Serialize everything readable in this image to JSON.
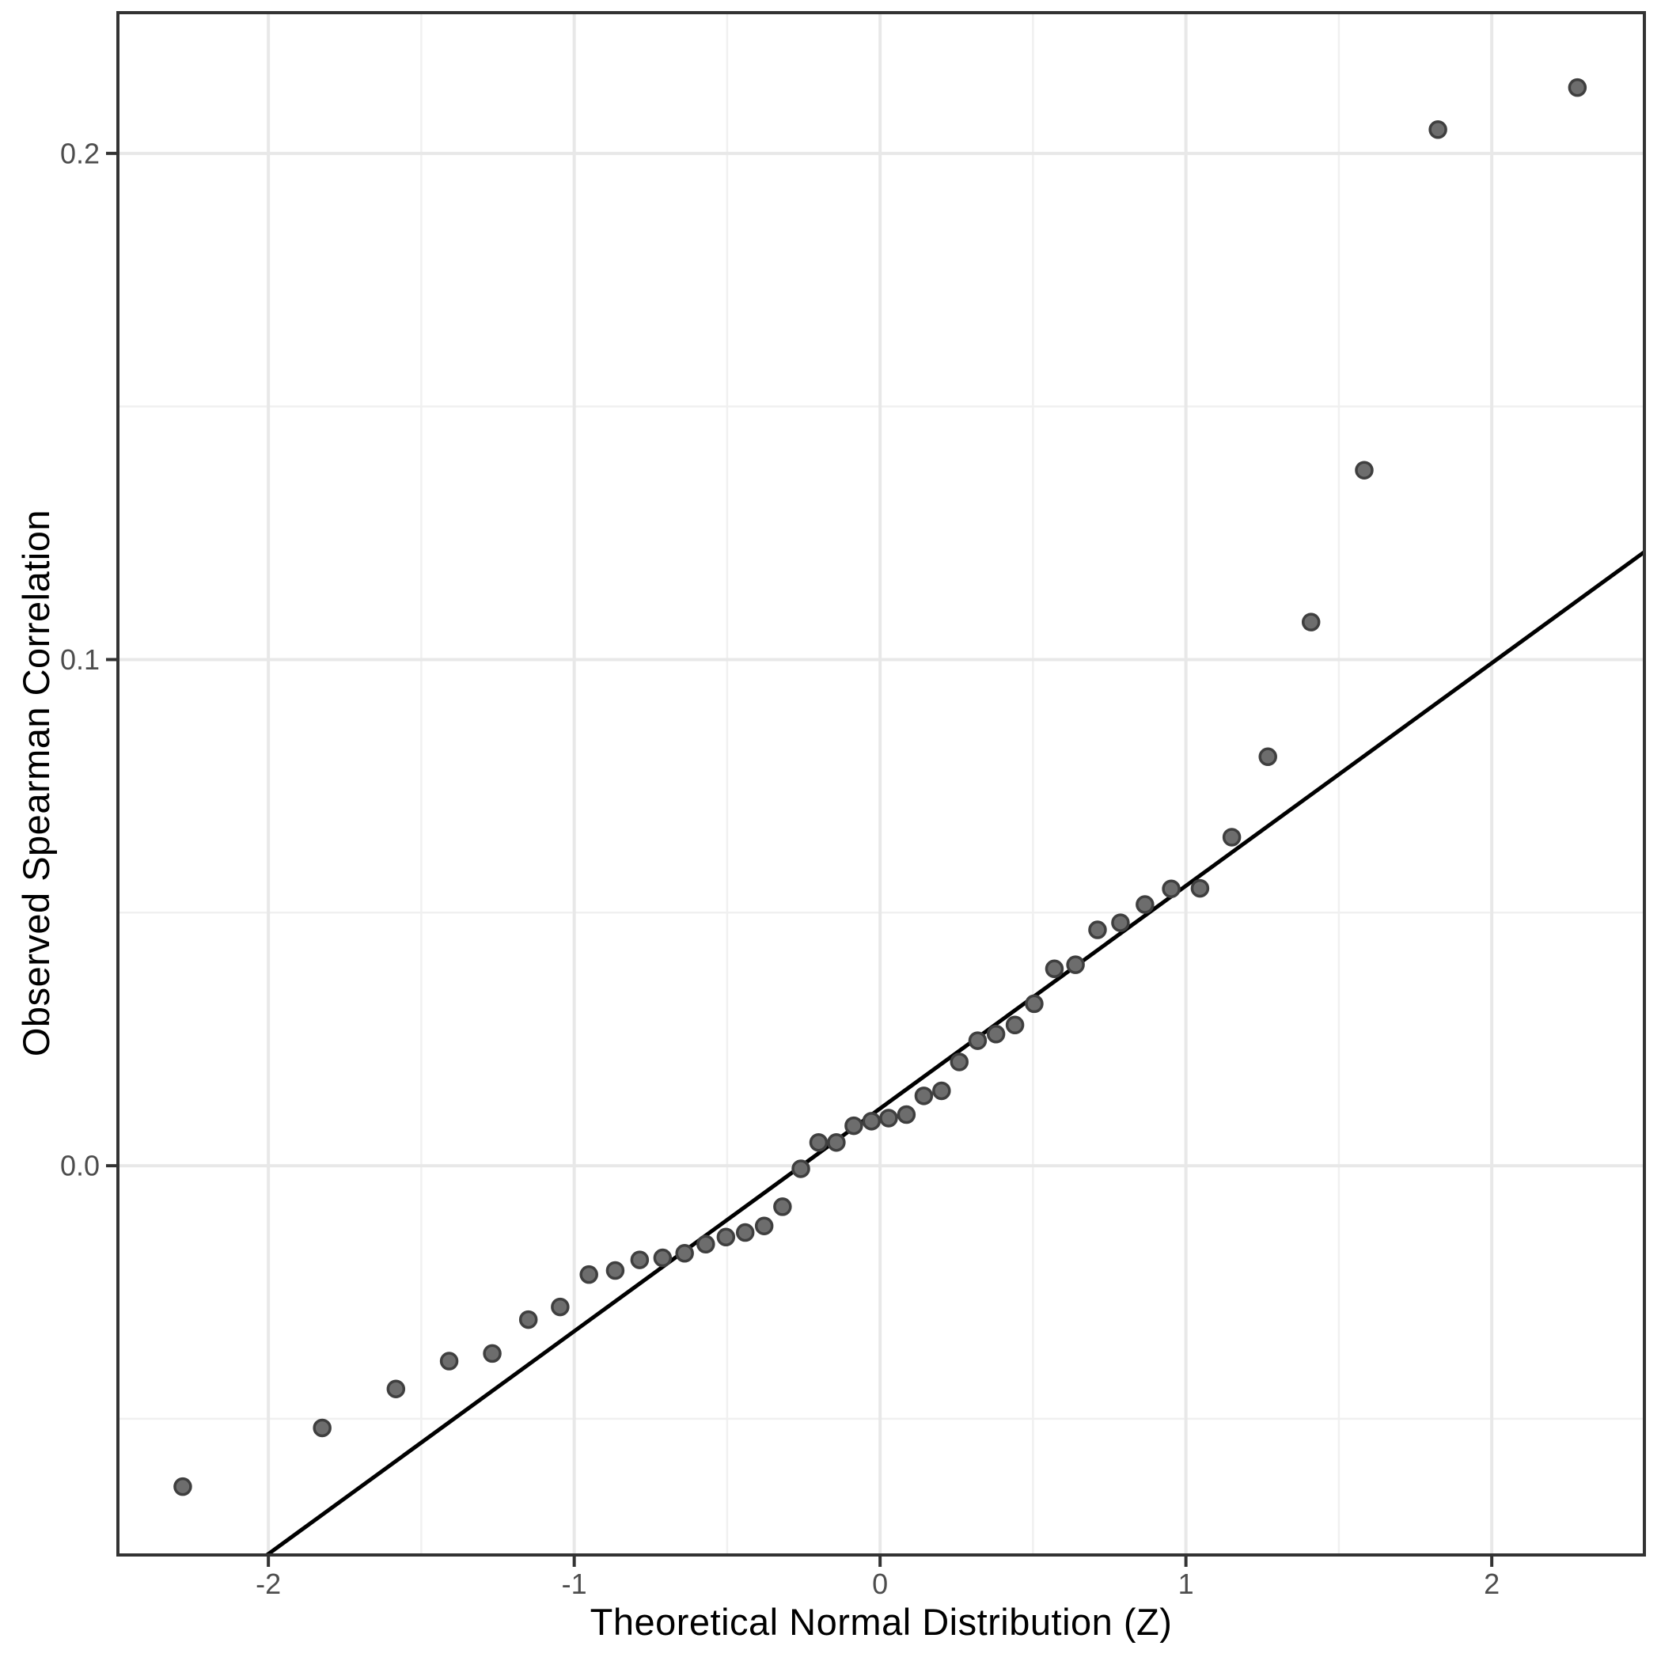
{
  "figure": {
    "background": "#ffffff"
  },
  "chart_data": {
    "type": "scatter",
    "title": "",
    "xlabel": "Theoretical Normal Distribution (Z)",
    "ylabel": "Observed Spearman Correlation",
    "xlim": [
      -2.492,
      2.499
    ],
    "ylim": [
      -0.0769,
      0.2278
    ],
    "grid": true,
    "legend_position": "none",
    "x_ticks": [
      {
        "value": -2,
        "label": "-2"
      },
      {
        "value": -1,
        "label": "-1"
      },
      {
        "value": 0,
        "label": "0"
      },
      {
        "value": 1,
        "label": "1"
      },
      {
        "value": 2,
        "label": "2"
      }
    ],
    "x_minor_gridlines": [
      -1.5,
      -0.5,
      0.5,
      1.5
    ],
    "y_ticks": [
      {
        "value": 0.0,
        "label": "0.0"
      },
      {
        "value": 0.1,
        "label": "0.1"
      },
      {
        "value": 0.2,
        "label": "0.2"
      }
    ],
    "y_minor_gridlines": [
      -0.05,
      0.05,
      0.15
    ],
    "points": [
      [
        -2.28,
        -0.0634
      ],
      [
        -1.824,
        -0.0518
      ],
      [
        -1.583,
        -0.0441
      ],
      [
        -1.409,
        -0.0386
      ],
      [
        -1.268,
        -0.0371
      ],
      [
        -1.15,
        -0.0304
      ],
      [
        -1.046,
        -0.0279
      ],
      [
        -0.952,
        -0.0215
      ],
      [
        -0.866,
        -0.0207
      ],
      [
        -0.786,
        -0.0186
      ],
      [
        -0.711,
        -0.0182
      ],
      [
        -0.639,
        -0.0173
      ],
      [
        -0.57,
        -0.0155
      ],
      [
        -0.504,
        -0.0141
      ],
      [
        -0.441,
        -0.0132
      ],
      [
        -0.379,
        -0.0119
      ],
      [
        -0.319,
        -0.0081
      ],
      [
        -0.259,
        -0.0006
      ],
      [
        -0.201,
        0.0046
      ],
      [
        -0.143,
        0.0046
      ],
      [
        -0.086,
        0.0079
      ],
      [
        -0.028,
        0.0088
      ],
      [
        0.028,
        0.0094
      ],
      [
        0.086,
        0.0101
      ],
      [
        0.143,
        0.0138
      ],
      [
        0.201,
        0.0148
      ],
      [
        0.259,
        0.0205
      ],
      [
        0.319,
        0.0247
      ],
      [
        0.379,
        0.026
      ],
      [
        0.441,
        0.0278
      ],
      [
        0.504,
        0.032
      ],
      [
        0.57,
        0.0389
      ],
      [
        0.639,
        0.0397
      ],
      [
        0.711,
        0.0466
      ],
      [
        0.786,
        0.048
      ],
      [
        0.866,
        0.0516
      ],
      [
        0.952,
        0.0547
      ],
      [
        1.046,
        0.0548
      ],
      [
        1.15,
        0.0649
      ],
      [
        1.268,
        0.0808
      ],
      [
        1.409,
        0.1074
      ],
      [
        1.583,
        0.1374
      ],
      [
        1.824,
        0.2047
      ],
      [
        2.28,
        0.213
      ]
    ],
    "reference_line": {
      "slope": 0.044,
      "intercept": 0.0113
    },
    "style": {
      "point_fill": "#6d6d6d",
      "point_stroke": "#3f3f3f",
      "point_radius": 10,
      "point_stroke_width": 3.5,
      "reference_line_color": "#000000",
      "reference_line_width": 5,
      "grid_major_color": "#e8e8e8",
      "grid_minor_color": "#f0f0f0",
      "grid_major_width": 4,
      "grid_minor_width": 2.5,
      "panel_border_color": "#333333",
      "panel_border_width": 4,
      "tick_color": "#333333",
      "tick_length": 15,
      "tick_label_color": "#4d4d4d",
      "tick_label_size": 36,
      "background": "#ffffff"
    }
  }
}
